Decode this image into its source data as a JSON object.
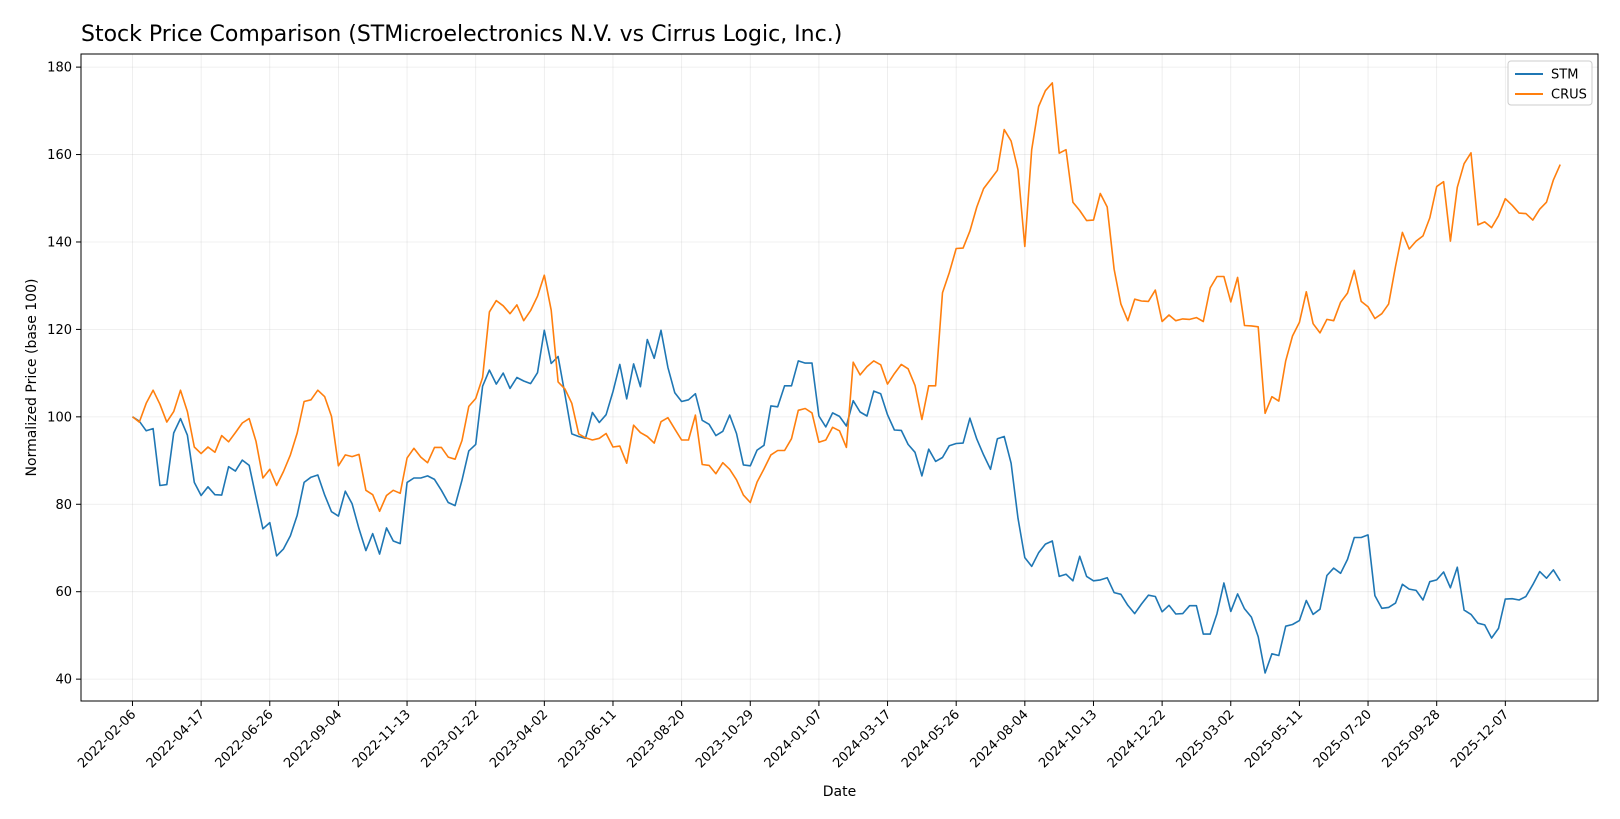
{
  "chart_data": {
    "type": "line",
    "title": "Stock Price Comparison (STMicroelectronics N.V. vs Cirrus Logic, Inc.)",
    "xlabel": "Date",
    "ylabel": "Normalized Price (base 100)",
    "ylim": [
      35,
      183
    ],
    "grid": true,
    "legend_position": "top-right",
    "x_ticks": [
      "2022-02-06",
      "2022-04-17",
      "2022-06-26",
      "2022-09-04",
      "2022-11-13",
      "2023-01-22",
      "2023-04-02",
      "2023-06-11",
      "2023-08-20",
      "2023-10-29",
      "2024-01-07",
      "2024-03-17",
      "2024-05-26",
      "2024-08-04",
      "2024-10-13",
      "2024-12-22",
      "2025-03-02",
      "2025-05-11",
      "2025-07-20",
      "2025-09-28",
      "2025-12-07"
    ],
    "y_ticks": [
      40,
      60,
      80,
      100,
      120,
      140,
      160,
      180
    ],
    "x_range_weeks": [
      -7.5,
      213.5
    ],
    "series": [
      {
        "name": "STM",
        "color": "#1f77b4",
        "start_week": 0,
        "values": [
          100,
          99,
          96.8,
          97.3,
          84.3,
          84.5,
          96.3,
          99.6,
          95.8,
          85,
          82,
          84,
          82.2,
          82.1,
          88.6,
          87.6,
          90.1,
          88.9,
          81.6,
          74.4,
          75.8,
          68.2,
          69.8,
          72.8,
          77.5,
          85,
          86.2,
          86.7,
          82.1,
          78.3,
          77.3,
          83,
          80.1,
          74.4,
          69.4,
          73.3,
          68.6,
          74.6,
          71.6,
          71,
          85,
          86,
          86,
          86.5,
          85.7,
          83.2,
          80.4,
          79.7,
          85.5,
          92.2,
          93.7,
          107,
          110.7,
          107.5,
          110,
          106.5,
          109,
          108.2,
          107.6,
          110.1,
          119.8,
          112.2,
          113.8,
          105.2,
          96.1,
          95.5,
          95.1,
          101,
          98.7,
          100.5,
          105.8,
          112,
          104.1,
          112.1,
          106.9,
          117.7,
          113.4,
          119.8,
          111.3,
          105.5,
          103.5,
          103.9,
          105.3,
          99.2,
          98.3,
          95.7,
          96.7,
          100.4,
          96.2,
          89,
          88.8,
          92.4,
          93.5,
          102.5,
          102.3,
          107.1,
          107.1,
          112.8,
          112.3,
          112.3,
          100.2,
          97.7,
          100.9,
          100.1,
          97.9,
          103.7,
          101.1,
          100.2,
          105.9,
          105.3,
          100.5,
          97,
          96.9,
          93.7,
          91.9,
          86.5,
          92.6,
          89.8,
          90.7,
          93.4,
          93.9,
          94,
          99.7,
          94.9,
          91.3,
          88,
          95,
          95.5,
          89.4,
          76.8,
          67.8,
          65.8,
          68.9,
          70.9,
          71.6,
          63.5,
          64,
          62.5,
          68.1,
          63.5,
          62.5,
          62.7,
          63.2,
          59.8,
          59.4,
          56.9,
          55,
          57.2,
          59.2,
          58.9,
          55.4,
          56.9,
          54.9,
          55,
          56.8,
          56.8,
          50.3,
          50.3,
          55,
          62,
          55.5,
          59.5,
          56.1,
          54.2,
          49.7,
          41.4,
          45.8,
          45.4,
          52.1,
          52.5,
          53.4,
          58,
          54.8,
          56,
          63.7,
          65.4,
          64.2,
          67.4,
          72.4,
          72.4,
          73,
          59.1,
          56.2,
          56.4,
          57.4,
          61.7,
          60.6,
          60.3,
          58.1,
          62.3,
          62.7,
          64.5,
          60.9,
          65.6,
          55.8,
          54.8,
          52.8,
          52.4,
          49.4,
          51.6,
          58.3,
          58.4,
          58.1,
          58.9,
          61.6,
          64.6,
          63.1,
          65,
          62.5
        ]
      },
      {
        "name": "CRUS",
        "color": "#ff7f0e",
        "start_week": 0,
        "values": [
          100,
          98.8,
          103.1,
          106.1,
          102.9,
          98.8,
          101.2,
          106.1,
          101.2,
          93.1,
          91.6,
          93.1,
          91.9,
          95.7,
          94.3,
          96.4,
          98.6,
          99.6,
          94.4,
          86,
          88,
          84.3,
          87.5,
          91.3,
          96.3,
          103.5,
          103.9,
          106.1,
          104.6,
          100.1,
          88.8,
          91.3,
          90.9,
          91.4,
          83.2,
          82.2,
          78.4,
          82,
          83.2,
          82.5,
          90.6,
          92.8,
          90.8,
          89.5,
          93,
          93,
          90.8,
          90.3,
          94.6,
          102.4,
          104.2,
          109,
          124,
          126.6,
          125.4,
          123.6,
          125.6,
          122,
          124.3,
          127.6,
          132.4,
          124.4,
          108,
          106.4,
          103.1,
          96.1,
          95.2,
          94.7,
          95.1,
          96.2,
          93.1,
          93.3,
          89.4,
          98.1,
          96.4,
          95.5,
          94,
          98.9,
          99.8,
          97.2,
          94.7,
          94.7,
          100.4,
          89.1,
          88.9,
          87,
          89.5,
          88,
          85.6,
          82.1,
          80.4,
          85.1,
          88.1,
          91.3,
          92.3,
          92.3,
          95,
          101.5,
          101.9,
          100.9,
          94.2,
          94.7,
          97.6,
          96.8,
          93,
          112.5,
          109.6,
          111.5,
          112.8,
          111.9,
          107.5,
          109.9,
          112,
          111,
          107.2,
          99.4,
          107.1,
          107.1,
          128.4,
          133,
          138.5,
          138.6,
          142.5,
          148,
          152.2,
          154.3,
          156.4,
          165.7,
          163.1,
          156.5,
          139,
          161.1,
          171,
          174.6,
          176.4,
          160.3,
          161.1,
          149.1,
          147.2,
          144.9,
          145,
          151.1,
          148,
          133.8,
          125.8,
          122,
          126.9,
          126.5,
          126.4,
          129,
          121.8,
          123.3,
          122,
          122.4,
          122.3,
          122.7,
          121.8,
          129.5,
          132.1,
          132.1,
          126.3,
          131.9,
          120.9,
          120.8,
          120.6,
          100.8,
          104.6,
          103.6,
          112.8,
          118.5,
          121.6,
          128.6,
          121.3,
          119.2,
          122.3,
          122,
          126.2,
          128.3,
          133.5,
          126.4,
          125.2,
          122.5,
          123.6,
          125.8,
          134.4,
          142.2,
          138.4,
          140.2,
          141.4,
          145.5,
          152.7,
          153.8,
          140.2,
          152.5,
          157.9,
          160.4,
          143.9,
          144.6,
          143.3,
          146,
          149.9,
          148.4,
          146.6,
          146.5,
          145,
          147.5,
          149.1,
          154.2,
          157.7
        ]
      }
    ]
  }
}
